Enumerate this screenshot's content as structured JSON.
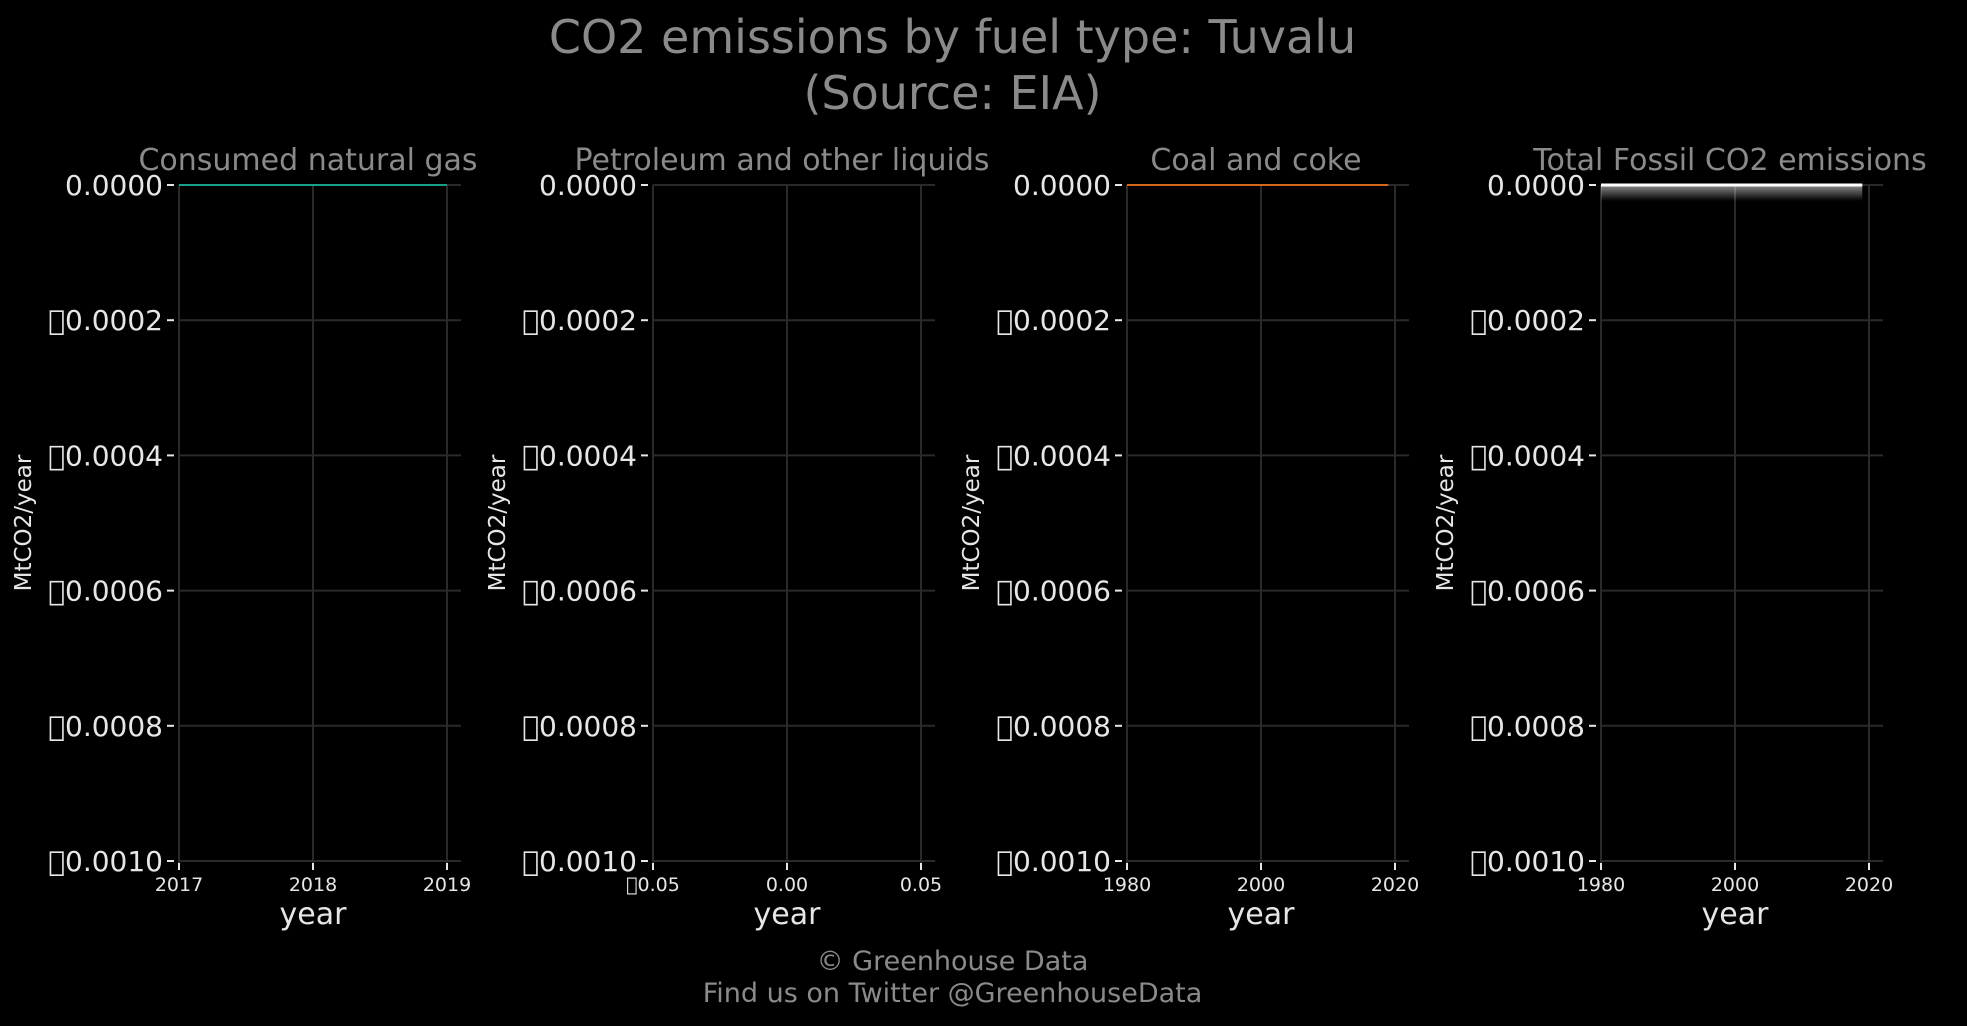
{
  "title": {
    "line1": "CO2 emissions by fuel type: Tuvalu",
    "line2": "(Source: EIA)"
  },
  "footer": {
    "line1": "© Greenhouse Data",
    "line2": "Find us on Twitter @GreenhouseData"
  },
  "colors": {
    "background": "#000000",
    "grid": "#2a2a2a",
    "title_text": "#8a8a8a",
    "tick_text": "#e6e6e6",
    "natural_gas": "#1a9e8a",
    "coal": "#d2691e",
    "total": "#ffffff"
  },
  "chart_data": [
    {
      "type": "line",
      "title": "Consumed natural gas",
      "xlabel": "year",
      "ylabel": "MtCO2/year",
      "x_ticks": [
        "2017",
        "2018",
        "2019"
      ],
      "xlim": [
        2017,
        2019
      ],
      "y_ticks": [
        "0.0000",
        "\u00000.0002",
        "\u00000.0004",
        "\u00000.0006",
        "\u00000.0008",
        "\u00000.0010"
      ],
      "ylim": [
        -0.001,
        0
      ],
      "y_inverted_top_zero": true,
      "grid": true,
      "series": [
        {
          "color": "#1a9e8a",
          "x": [
            2017,
            2018,
            2019
          ],
          "values": [
            0,
            0,
            0
          ]
        }
      ]
    },
    {
      "type": "line",
      "title": "Petroleum and other liquids",
      "xlabel": "year",
      "ylabel": "MtCO2/year",
      "x_ticks": [
        "\u00000.05",
        "0.00",
        "0.05"
      ],
      "xlim": [
        -0.05,
        0.05
      ],
      "y_ticks": [
        "0.0000",
        "\u00000.0002",
        "\u00000.0004",
        "\u00000.0006",
        "\u00000.0008",
        "\u00000.0010"
      ],
      "ylim": [
        -0.001,
        0
      ],
      "grid": true,
      "series": []
    },
    {
      "type": "line",
      "title": "Coal and coke",
      "xlabel": "year",
      "ylabel": "MtCO2/year",
      "x_ticks": [
        "1980",
        "2000",
        "2020"
      ],
      "xlim": [
        1980,
        2020
      ],
      "y_ticks": [
        "0.0000",
        "\u00000.0002",
        "\u00000.0004",
        "\u00000.0006",
        "\u00000.0008",
        "\u00000.0010"
      ],
      "ylim": [
        -0.001,
        0
      ],
      "grid": true,
      "series": [
        {
          "color": "#d2691e",
          "x": [
            1980,
            2019
          ],
          "values": [
            0,
            0
          ]
        }
      ]
    },
    {
      "type": "area",
      "title": "Total Fossil CO2 emissions",
      "xlabel": "year",
      "ylabel": "MtCO2/year",
      "x_ticks": [
        "1980",
        "2000",
        "2020"
      ],
      "xlim": [
        1980,
        2020
      ],
      "y_ticks": [
        "0.0000",
        "\u00000.0002",
        "\u00000.0004",
        "\u00000.0006",
        "\u00000.0008",
        "\u00000.0010"
      ],
      "ylim": [
        -0.001,
        0
      ],
      "grid": true,
      "series": [
        {
          "color": "#ffffff",
          "x": [
            1980,
            2019
          ],
          "values": [
            0,
            0
          ]
        }
      ]
    }
  ]
}
